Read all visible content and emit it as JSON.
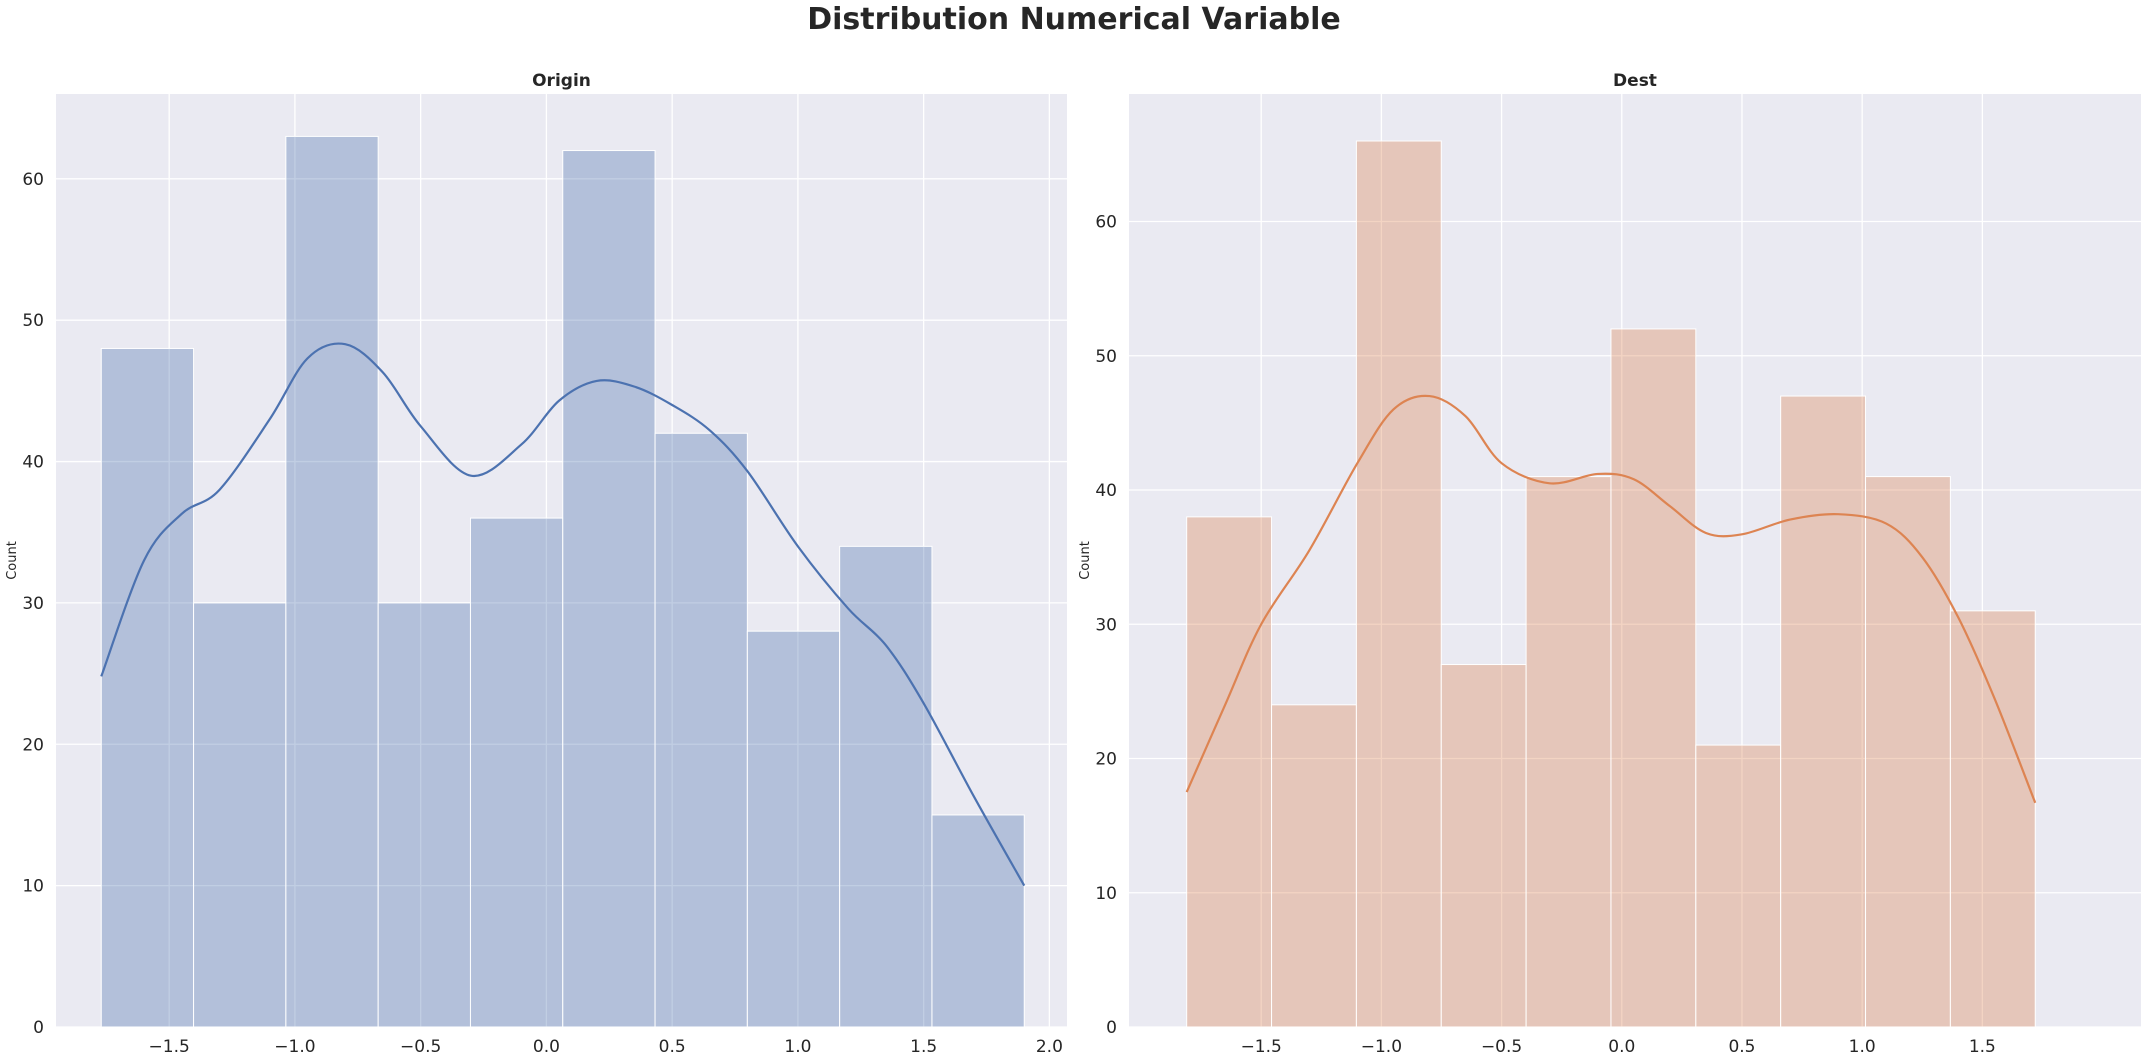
{
  "figure_title": "Distribution Numerical Variable",
  "chart_data": [
    {
      "type": "bar",
      "title": "Origin",
      "xlabel": "",
      "ylabel": "Count",
      "color": "#4c72b0",
      "bar_opacity": 0.35,
      "xlim": [
        -1.95,
        2.07
      ],
      "ylim": [
        0,
        66
      ],
      "xticks": [
        -1.5,
        -1.0,
        -0.5,
        0.0,
        0.5,
        1.0,
        1.5,
        2.0
      ],
      "xtick_labels": [
        "−1.5",
        "−1.0",
        "−0.5",
        "0.0",
        "0.5",
        "1.0",
        "1.5",
        "2.0"
      ],
      "yticks": [
        0,
        10,
        20,
        30,
        40,
        50,
        60
      ],
      "ytick_labels": [
        "0",
        "10",
        "20",
        "30",
        "40",
        "50",
        "60"
      ],
      "bin_edges": [
        -1.77,
        -1.403,
        -1.036,
        -0.669,
        -0.302,
        0.065,
        0.432,
        0.799,
        1.166,
        1.533,
        1.9
      ],
      "counts": [
        48,
        30,
        63,
        30,
        36,
        62,
        42,
        28,
        34,
        15
      ],
      "kde": {
        "x": [
          -1.77,
          -1.6,
          -1.45,
          -1.3,
          -1.1,
          -0.95,
          -0.8,
          -0.65,
          -0.5,
          -0.3,
          -0.1,
          0.05,
          0.2,
          0.35,
          0.5,
          0.65,
          0.8,
          1.0,
          1.2,
          1.35,
          1.5,
          1.7,
          1.9
        ],
        "y": [
          24.8,
          33.0,
          36.3,
          38.0,
          43.0,
          47.3,
          48.3,
          46.3,
          42.5,
          39.0,
          41.2,
          44.3,
          45.7,
          45.3,
          44.0,
          42.2,
          39.3,
          34.0,
          29.6,
          27.0,
          22.9,
          16.3,
          10.0
        ]
      }
    },
    {
      "type": "bar",
      "title": "Dest",
      "xlabel": "",
      "ylabel": "Count",
      "color": "#dd8452",
      "bar_opacity": 0.35,
      "xlim": [
        -2.05,
        2.16
      ],
      "ylim": [
        0,
        69.5
      ],
      "xticks": [
        -1.5,
        -1.0,
        -0.5,
        0.0,
        0.5,
        1.0,
        1.5
      ],
      "xtick_labels": [
        "−1.5",
        "−1.0",
        "−0.5",
        "0.0",
        "0.5",
        "1.0",
        "1.5"
      ],
      "yticks": [
        0,
        10,
        20,
        30,
        40,
        50,
        60
      ],
      "ytick_labels": [
        "0",
        "10",
        "20",
        "30",
        "40",
        "50",
        "60"
      ],
      "bin_edges": [
        -1.81,
        -1.457,
        -1.104,
        -0.751,
        -0.398,
        -0.045,
        0.308,
        0.661,
        1.014,
        1.367,
        1.72
      ],
      "counts": [
        38,
        24,
        66,
        27,
        41,
        52,
        21,
        47,
        41,
        31
      ],
      "kde": {
        "x": [
          -1.81,
          -1.65,
          -1.5,
          -1.3,
          -1.1,
          -0.95,
          -0.8,
          -0.65,
          -0.5,
          -0.3,
          -0.1,
          0.05,
          0.2,
          0.35,
          0.5,
          0.7,
          0.9,
          1.1,
          1.25,
          1.4,
          1.55,
          1.72
        ],
        "y": [
          17.5,
          24.0,
          30.0,
          35.5,
          42.0,
          46.0,
          47.0,
          45.5,
          42.0,
          40.5,
          41.2,
          40.8,
          38.8,
          36.8,
          36.7,
          37.8,
          38.2,
          37.5,
          35.0,
          30.5,
          24.5,
          16.7
        ]
      }
    }
  ]
}
